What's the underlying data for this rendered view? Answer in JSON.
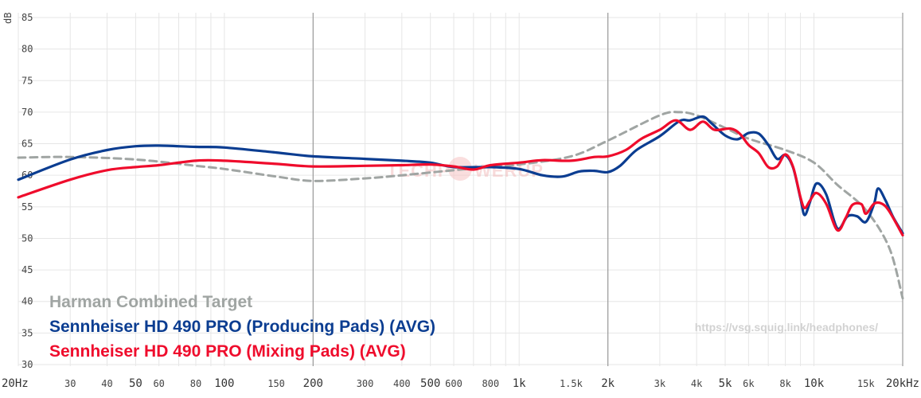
{
  "chart_data": {
    "type": "line",
    "ylabel": "dB",
    "xscale": "log",
    "xlim": [
      20,
      20000
    ],
    "ylim": [
      30,
      85
    ],
    "y_ticks": [
      "85",
      "80",
      "75",
      "70",
      "65",
      "60",
      "55",
      "50",
      "45",
      "40",
      "35",
      "30"
    ],
    "x_ticks": [
      {
        "value": 20,
        "label": "20Hz",
        "major": true
      },
      {
        "value": 30,
        "label": "30",
        "major": false
      },
      {
        "value": 40,
        "label": "40",
        "major": false
      },
      {
        "value": 50,
        "label": "50",
        "major": true
      },
      {
        "value": 60,
        "label": "60",
        "major": false
      },
      {
        "value": 80,
        "label": "80",
        "major": false
      },
      {
        "value": 100,
        "label": "100",
        "major": true
      },
      {
        "value": 150,
        "label": "150",
        "major": false
      },
      {
        "value": 200,
        "label": "200",
        "major": true
      },
      {
        "value": 300,
        "label": "300",
        "major": false
      },
      {
        "value": 400,
        "label": "400",
        "major": false
      },
      {
        "value": 500,
        "label": "500",
        "major": true
      },
      {
        "value": 600,
        "label": "600",
        "major": false
      },
      {
        "value": 800,
        "label": "800",
        "major": false
      },
      {
        "value": 1000,
        "label": "1k",
        "major": true
      },
      {
        "value": 1500,
        "label": "1.5k",
        "major": false
      },
      {
        "value": 2000,
        "label": "2k",
        "major": true
      },
      {
        "value": 3000,
        "label": "3k",
        "major": false
      },
      {
        "value": 4000,
        "label": "4k",
        "major": false
      },
      {
        "value": 5000,
        "label": "5k",
        "major": true
      },
      {
        "value": 6000,
        "label": "6k",
        "major": false
      },
      {
        "value": 8000,
        "label": "8k",
        "major": false
      },
      {
        "value": 10000,
        "label": "10k",
        "major": true
      },
      {
        "value": 15000,
        "label": "15k",
        "major": false
      },
      {
        "value": 20000,
        "label": "20kHz",
        "major": true
      }
    ],
    "series": [
      {
        "name": "Harman Combined Target",
        "color": "#a0a5a3",
        "dashed": true,
        "points": [
          [
            20,
            62.8
          ],
          [
            30,
            62.9
          ],
          [
            50,
            62.5
          ],
          [
            80,
            61.5
          ],
          [
            100,
            61.0
          ],
          [
            150,
            59.8
          ],
          [
            200,
            59.1
          ],
          [
            300,
            59.5
          ],
          [
            400,
            60.0
          ],
          [
            600,
            60.8
          ],
          [
            800,
            61.3
          ],
          [
            1000,
            61.7
          ],
          [
            1500,
            63.0
          ],
          [
            2000,
            65.5
          ],
          [
            3000,
            69.5
          ],
          [
            3500,
            70.0
          ],
          [
            4000,
            69.5
          ],
          [
            5000,
            67.5
          ],
          [
            6000,
            65.8
          ],
          [
            8000,
            64.0
          ],
          [
            10000,
            62.0
          ],
          [
            12000,
            58.5
          ],
          [
            15000,
            54.5
          ],
          [
            18000,
            48.5
          ],
          [
            20000,
            40.5
          ]
        ]
      },
      {
        "name": "Sennheiser HD 490 PRO (Producing Pads) (AVG)",
        "color": "#0b3d91",
        "dashed": false,
        "points": [
          [
            20,
            59.3
          ],
          [
            30,
            62.5
          ],
          [
            40,
            64.0
          ],
          [
            50,
            64.6
          ],
          [
            60,
            64.7
          ],
          [
            80,
            64.5
          ],
          [
            100,
            64.4
          ],
          [
            150,
            63.6
          ],
          [
            200,
            63.0
          ],
          [
            300,
            62.6
          ],
          [
            400,
            62.3
          ],
          [
            500,
            62.0
          ],
          [
            600,
            61.3
          ],
          [
            800,
            61.3
          ],
          [
            1000,
            61.0
          ],
          [
            1200,
            60.0
          ],
          [
            1400,
            59.8
          ],
          [
            1600,
            60.6
          ],
          [
            1800,
            60.7
          ],
          [
            2000,
            60.5
          ],
          [
            2200,
            61.5
          ],
          [
            2500,
            64.0
          ],
          [
            3000,
            66.2
          ],
          [
            3500,
            68.6
          ],
          [
            3800,
            68.7
          ],
          [
            4200,
            69.3
          ],
          [
            4500,
            68.2
          ],
          [
            5000,
            66.3
          ],
          [
            5500,
            65.7
          ],
          [
            6000,
            66.7
          ],
          [
            6500,
            66.6
          ],
          [
            7000,
            64.8
          ],
          [
            7500,
            62.6
          ],
          [
            8000,
            63.2
          ],
          [
            8500,
            61.2
          ],
          [
            9000,
            56.3
          ],
          [
            9300,
            53.7
          ],
          [
            9700,
            55.8
          ],
          [
            10200,
            58.7
          ],
          [
            11000,
            57.0
          ],
          [
            12000,
            51.6
          ],
          [
            13000,
            53.5
          ],
          [
            14000,
            53.5
          ],
          [
            15000,
            52.6
          ],
          [
            16000,
            55.5
          ],
          [
            16500,
            57.9
          ],
          [
            17500,
            56.0
          ],
          [
            18500,
            53.5
          ],
          [
            20000,
            50.8
          ]
        ]
      },
      {
        "name": "Sennheiser HD 490 PRO (Mixing Pads) (AVG)",
        "color": "#ef0c2c",
        "dashed": false,
        "points": [
          [
            20,
            56.5
          ],
          [
            30,
            59.3
          ],
          [
            40,
            60.8
          ],
          [
            50,
            61.3
          ],
          [
            60,
            61.6
          ],
          [
            80,
            62.3
          ],
          [
            100,
            62.3
          ],
          [
            150,
            61.8
          ],
          [
            200,
            61.4
          ],
          [
            300,
            61.5
          ],
          [
            400,
            61.6
          ],
          [
            500,
            61.7
          ],
          [
            600,
            61.4
          ],
          [
            700,
            60.9
          ],
          [
            800,
            61.6
          ],
          [
            1000,
            62.0
          ],
          [
            1200,
            62.4
          ],
          [
            1500,
            62.3
          ],
          [
            1800,
            62.9
          ],
          [
            2000,
            63.0
          ],
          [
            2300,
            64.0
          ],
          [
            2600,
            65.8
          ],
          [
            3000,
            67.2
          ],
          [
            3400,
            68.7
          ],
          [
            3800,
            67.2
          ],
          [
            4200,
            68.5
          ],
          [
            4600,
            67.2
          ],
          [
            5200,
            67.4
          ],
          [
            5600,
            66.6
          ],
          [
            6000,
            64.8
          ],
          [
            6500,
            63.5
          ],
          [
            7000,
            61.3
          ],
          [
            7500,
            61.4
          ],
          [
            8000,
            63.3
          ],
          [
            8500,
            61.3
          ],
          [
            9000,
            56.5
          ],
          [
            9300,
            54.8
          ],
          [
            9700,
            56.0
          ],
          [
            10200,
            57.2
          ],
          [
            11000,
            55.5
          ],
          [
            12000,
            51.3
          ],
          [
            12800,
            53.2
          ],
          [
            13500,
            55.3
          ],
          [
            14500,
            55.4
          ],
          [
            15000,
            53.9
          ],
          [
            16000,
            55.5
          ],
          [
            17000,
            55.5
          ],
          [
            18000,
            54.3
          ],
          [
            20000,
            50.5
          ]
        ]
      }
    ],
    "watermark_url": "https://vsg.squig.link/headphones/"
  }
}
